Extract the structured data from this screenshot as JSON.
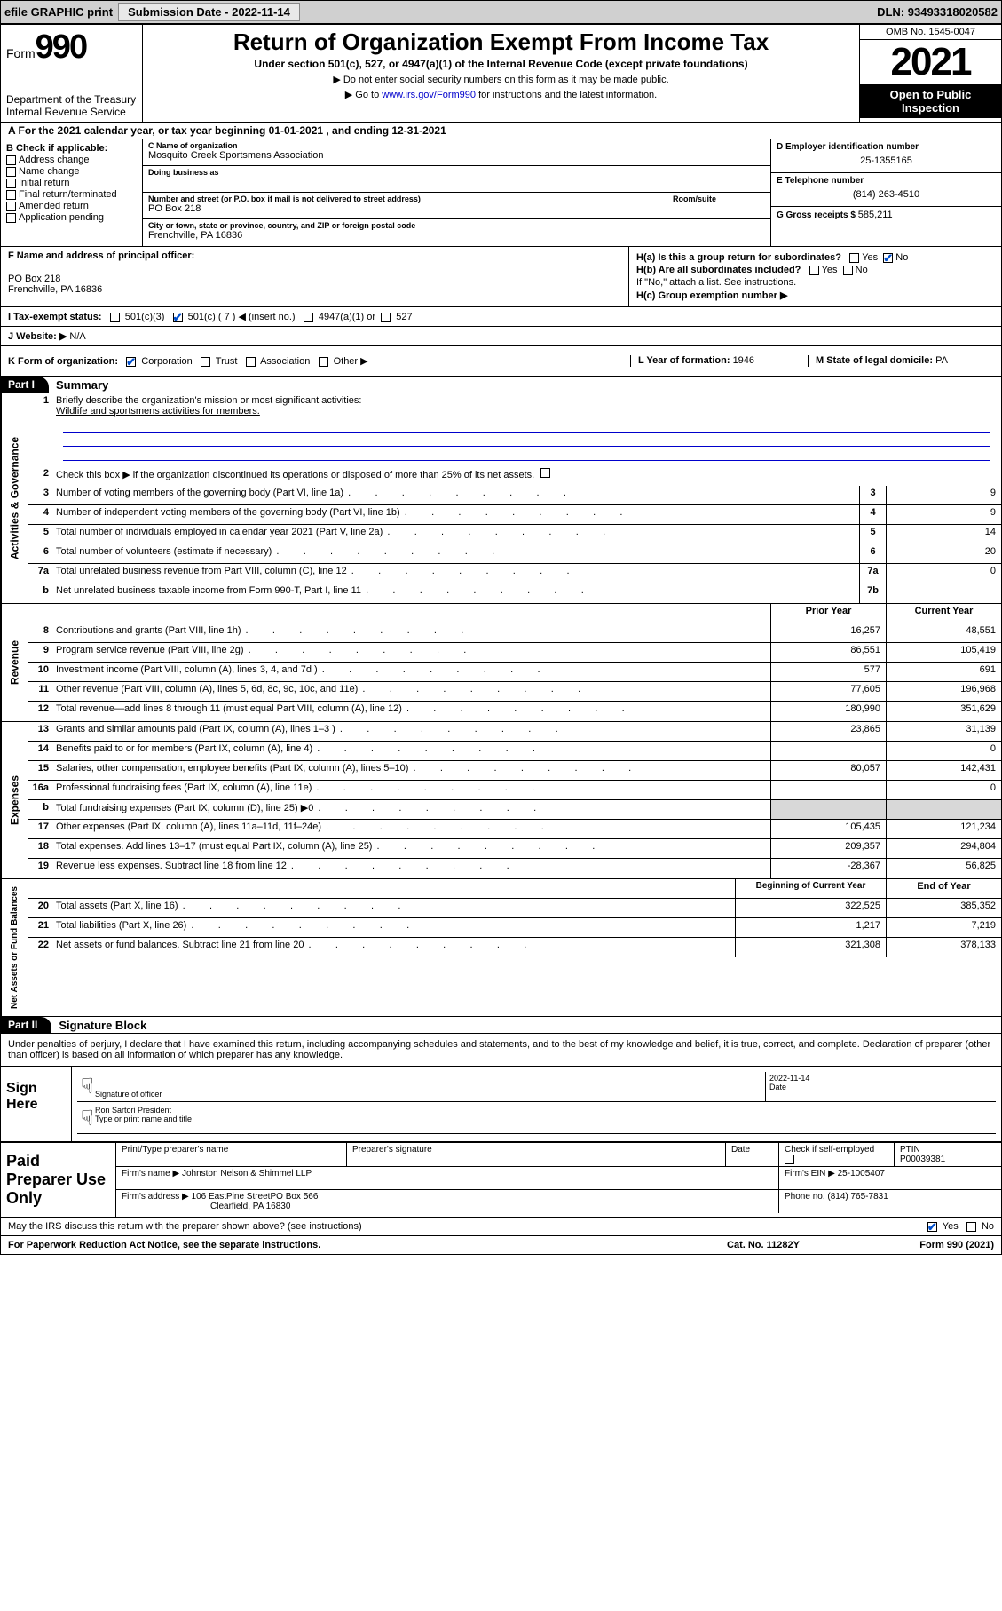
{
  "topbar": {
    "efile": "efile GRAPHIC print",
    "submission_label": "Submission Date - ",
    "submission_date": "2022-11-14",
    "dln_label": "DLN: ",
    "dln": "93493318020582"
  },
  "header": {
    "form_word": "Form",
    "form_num": "990",
    "dept": "Department of the Treasury",
    "irs": "Internal Revenue Service",
    "title": "Return of Organization Exempt From Income Tax",
    "sub": "Under section 501(c), 527, or 4947(a)(1) of the Internal Revenue Code (except private foundations)",
    "note1": "▶ Do not enter social security numbers on this form as it may be made public.",
    "note2_pre": "▶ Go to ",
    "note2_link": "www.irs.gov/Form990",
    "note2_post": " for instructions and the latest information.",
    "omb": "OMB No. 1545-0047",
    "year": "2021",
    "open": "Open to Public Inspection"
  },
  "row_a": "A For the 2021 calendar year, or tax year beginning 01-01-2021    , and ending 12-31-2021",
  "section_b": {
    "hdr": "B Check if applicable:",
    "items": [
      "Address change",
      "Name change",
      "Initial return",
      "Final return/terminated",
      "Amended return",
      "Application pending"
    ]
  },
  "section_c": {
    "name_lbl": "C Name of organization",
    "name": "Mosquito Creek Sportsmens Association",
    "dba_lbl": "Doing business as",
    "dba": "",
    "addr_lbl": "Number and street (or P.O. box if mail is not delivered to street address)",
    "room_lbl": "Room/suite",
    "addr": "PO Box 218",
    "city_lbl": "City or town, state or province, country, and ZIP or foreign postal code",
    "city": "Frenchville, PA   16836"
  },
  "section_d": {
    "ein_lbl": "D Employer identification number",
    "ein": "25-1355165",
    "phone_lbl": "E Telephone number",
    "phone": "(814) 263-4510",
    "gross_lbl": "G Gross receipts $ ",
    "gross": "585,211"
  },
  "section_f": {
    "lbl": "F  Name and address of principal officer:",
    "addr1": "PO Box 218",
    "addr2": "Frenchville, PA   16836"
  },
  "section_h": {
    "ha": "H(a)  Is this a group return for subordinates?",
    "hb": "H(b)  Are all subordinates included?",
    "hb_note": "If \"No,\" attach a list. See instructions.",
    "hc": "H(c)  Group exemption number ▶",
    "yes": "Yes",
    "no": "No"
  },
  "row_i": {
    "lbl": "I     Tax-exempt status:",
    "o1": "501(c)(3)",
    "o2": "501(c) ( 7 ) ◀ (insert no.)",
    "o3": "4947(a)(1) or",
    "o4": "527"
  },
  "row_j": {
    "lbl": "J    Website: ▶ ",
    "val": "N/A"
  },
  "row_k": {
    "lbl": "K Form of organization:",
    "o1": "Corporation",
    "o2": "Trust",
    "o3": "Association",
    "o4": "Other ▶",
    "l_lbl": "L Year of formation: ",
    "l_val": "1946",
    "m_lbl": "M State of legal domicile: ",
    "m_val": "PA"
  },
  "part1": {
    "hdr": "Part I",
    "title": "Summary",
    "line1_lbl": "Briefly describe the organization's mission or most significant activities:",
    "line1_val": "Wildlife and sportsmens activities for members.",
    "line2": "Check this box ▶        if the organization discontinued its operations or disposed of more than 25% of its net assets.",
    "lines_gov": [
      {
        "n": "3",
        "d": "Number of voting members of the governing body (Part VI, line 1a)",
        "b": "3",
        "v": "9"
      },
      {
        "n": "4",
        "d": "Number of independent voting members of the governing body (Part VI, line 1b)",
        "b": "4",
        "v": "9"
      },
      {
        "n": "5",
        "d": "Total number of individuals employed in calendar year 2021 (Part V, line 2a)",
        "b": "5",
        "v": "14"
      },
      {
        "n": "6",
        "d": "Total number of volunteers (estimate if necessary)",
        "b": "6",
        "v": "20"
      },
      {
        "n": "7a",
        "d": "Total unrelated business revenue from Part VIII, column (C), line 12",
        "b": "7a",
        "v": "0"
      },
      {
        "n": "b",
        "d": "Net unrelated business taxable income from Form 990-T, Part I, line 11",
        "b": "7b",
        "v": ""
      }
    ],
    "col_hdrs": {
      "prior": "Prior Year",
      "current": "Current Year"
    },
    "lines_rev": [
      {
        "n": "8",
        "d": "Contributions and grants (Part VIII, line 1h)",
        "p": "16,257",
        "c": "48,551"
      },
      {
        "n": "9",
        "d": "Program service revenue (Part VIII, line 2g)",
        "p": "86,551",
        "c": "105,419"
      },
      {
        "n": "10",
        "d": "Investment income (Part VIII, column (A), lines 3, 4, and 7d )",
        "p": "577",
        "c": "691"
      },
      {
        "n": "11",
        "d": "Other revenue (Part VIII, column (A), lines 5, 6d, 8c, 9c, 10c, and 11e)",
        "p": "77,605",
        "c": "196,968"
      },
      {
        "n": "12",
        "d": "Total revenue—add lines 8 through 11 (must equal Part VIII, column (A), line 12)",
        "p": "180,990",
        "c": "351,629"
      }
    ],
    "lines_exp": [
      {
        "n": "13",
        "d": "Grants and similar amounts paid (Part IX, column (A), lines 1–3 )",
        "p": "23,865",
        "c": "31,139"
      },
      {
        "n": "14",
        "d": "Benefits paid to or for members (Part IX, column (A), line 4)",
        "p": "",
        "c": "0"
      },
      {
        "n": "15",
        "d": "Salaries, other compensation, employee benefits (Part IX, column (A), lines 5–10)",
        "p": "80,057",
        "c": "142,431"
      },
      {
        "n": "16a",
        "d": "Professional fundraising fees (Part IX, column (A), line 11e)",
        "p": "",
        "c": "0"
      },
      {
        "n": "b",
        "d": "Total fundraising expenses (Part IX, column (D), line 25) ▶0",
        "p": "grey",
        "c": "grey"
      },
      {
        "n": "17",
        "d": "Other expenses (Part IX, column (A), lines 11a–11d, 11f–24e)",
        "p": "105,435",
        "c": "121,234"
      },
      {
        "n": "18",
        "d": "Total expenses. Add lines 13–17 (must equal Part IX, column (A), line 25)",
        "p": "209,357",
        "c": "294,804"
      },
      {
        "n": "19",
        "d": "Revenue less expenses. Subtract line 18 from line 12",
        "p": "-28,367",
        "c": "56,825"
      }
    ],
    "col_hdrs2": {
      "begin": "Beginning of Current Year",
      "end": "End of Year"
    },
    "lines_net": [
      {
        "n": "20",
        "d": "Total assets (Part X, line 16)",
        "p": "322,525",
        "c": "385,352"
      },
      {
        "n": "21",
        "d": "Total liabilities (Part X, line 26)",
        "p": "1,217",
        "c": "7,219"
      },
      {
        "n": "22",
        "d": "Net assets or fund balances. Subtract line 21 from line 20",
        "p": "321,308",
        "c": "378,133"
      }
    ],
    "vtabs": {
      "gov": "Activities & Governance",
      "rev": "Revenue",
      "exp": "Expenses",
      "net": "Net Assets or Fund Balances"
    }
  },
  "part2": {
    "hdr": "Part II",
    "title": "Signature Block",
    "decl": "Under penalties of perjury, I declare that I have examined this return, including accompanying schedules and statements, and to the best of my knowledge and belief, it is true, correct, and complete. Declaration of preparer (other than officer) is based on all information of which preparer has any knowledge."
  },
  "sign": {
    "here": "Sign Here",
    "sig_lbl": "Signature of officer",
    "date_lbl": "Date",
    "date": "2022-11-14",
    "name": "Ron Sartori  President",
    "name_lbl": "Type or print name and title"
  },
  "paid": {
    "hdr": "Paid Preparer Use Only",
    "col1": "Print/Type preparer's name",
    "col2": "Preparer's signature",
    "col3": "Date",
    "col4_lbl": "Check          if self-employed",
    "col5_lbl": "PTIN",
    "col5": "P00039381",
    "firm_name_lbl": "Firm's name     ▶ ",
    "firm_name": "Johnston Nelson & Shimmel LLP",
    "firm_ein_lbl": "Firm's EIN ▶ ",
    "firm_ein": "25-1005407",
    "firm_addr_lbl": "Firm's address ▶ ",
    "firm_addr1": "106 EastPine StreetPO Box 566",
    "firm_addr2": "Clearfield, PA   16830",
    "phone_lbl": "Phone no. ",
    "phone": "(814) 765-7831"
  },
  "footer": {
    "discuss": "May the IRS discuss this return with the preparer shown above? (see instructions)",
    "yes": "Yes",
    "no": "No",
    "paperwork": "For Paperwork Reduction Act Notice, see the separate instructions.",
    "cat": "Cat. No. 11282Y",
    "form": "Form 990 (2021)"
  }
}
